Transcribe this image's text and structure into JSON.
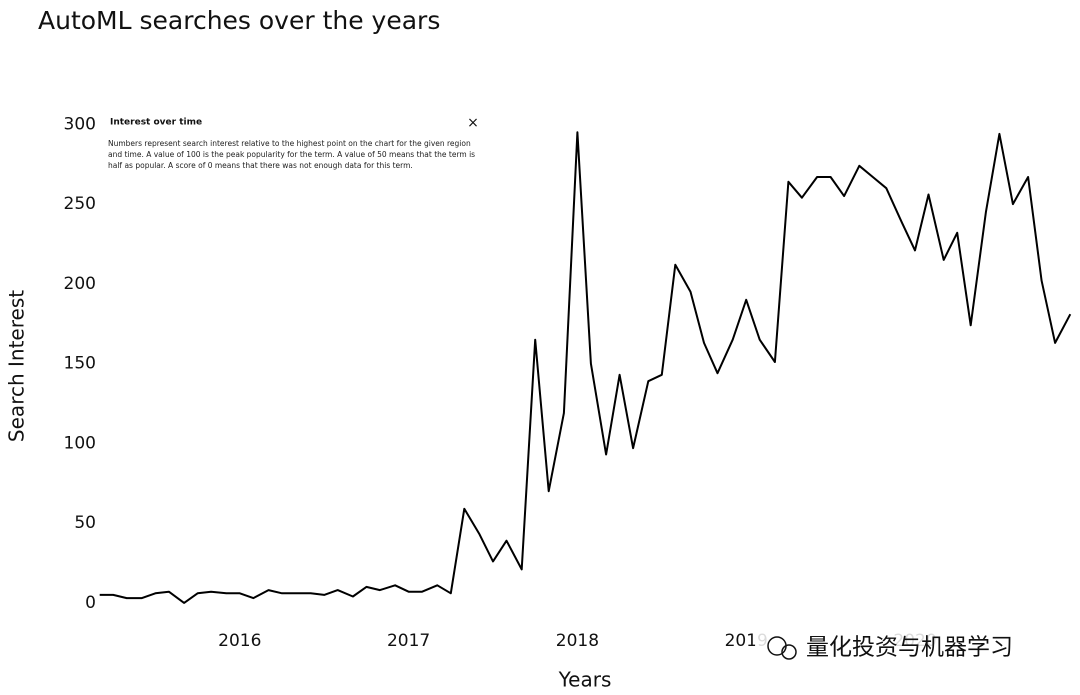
{
  "chart_data": {
    "type": "line",
    "title": "AutoML searches over the years",
    "x_label": "Years",
    "y_label": "Search Interest",
    "x": [
      2015.17,
      2015.25,
      2015.33,
      2015.42,
      2015.5,
      2015.58,
      2015.67,
      2015.75,
      2015.83,
      2015.92,
      2016.0,
      2016.08,
      2016.17,
      2016.25,
      2016.33,
      2016.42,
      2016.5,
      2016.58,
      2016.67,
      2016.75,
      2016.83,
      2016.92,
      2017.0,
      2017.08,
      2017.17,
      2017.25,
      2017.33,
      2017.42,
      2017.5,
      2017.58,
      2017.67,
      2017.75,
      2017.83,
      2017.92,
      2018.0,
      2018.08,
      2018.17,
      2018.25,
      2018.33,
      2018.42,
      2018.5,
      2018.58,
      2018.67,
      2018.75,
      2018.83,
      2018.92,
      2019.0,
      2019.08,
      2019.17,
      2019.25,
      2019.33,
      2019.42,
      2019.5,
      2019.58,
      2019.67,
      2019.75,
      2019.83,
      2019.92,
      2020.0,
      2020.08,
      2020.17,
      2020.25,
      2020.33,
      2020.42,
      2020.5,
      2020.58,
      2020.67,
      2020.75,
      2020.83,
      2020.92
    ],
    "series": [
      {
        "name": "AutoML",
        "color": "#000000",
        "values": [
          5,
          5,
          3,
          3,
          6,
          7,
          0,
          6,
          7,
          6,
          6,
          3,
          8,
          6,
          6,
          6,
          5,
          8,
          4,
          10,
          8,
          11,
          7,
          7,
          11,
          6,
          59,
          43,
          26,
          39,
          21,
          165,
          70,
          119,
          295,
          150,
          93,
          143,
          97,
          139,
          143,
          212,
          195,
          163,
          144,
          165,
          190,
          165,
          151,
          264,
          254,
          267,
          267,
          255,
          274,
          267,
          260,
          239,
          221,
          256,
          215,
          232,
          174,
          245,
          294,
          250,
          267,
          202,
          163,
          181
        ]
      }
    ],
    "xlim": [
      2015.16,
      2020.93
    ],
    "xticks": [
      2016,
      2017,
      2018,
      2019,
      2020
    ],
    "ylim": [
      -17,
      309
    ],
    "yticks": [
      0,
      50,
      100,
      150,
      200,
      250,
      300
    ],
    "grid": false,
    "popup": {
      "title": "Interest over time",
      "close": "×",
      "text": "Numbers represent search interest relative to the highest point on the chart for the given region and time. A value of 100 is the peak popularity for the term. A value of 50 means that the term is half as popular. A score of 0 means that there was not enough data for this term."
    },
    "watermark": "量化投资与机器学习"
  }
}
